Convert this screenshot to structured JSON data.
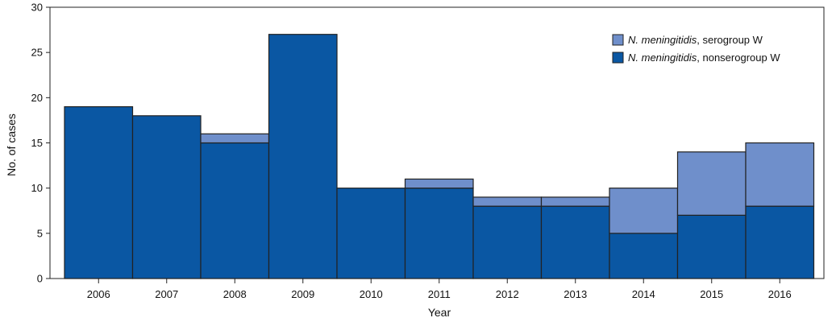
{
  "chart_data": {
    "type": "bar",
    "stacked": true,
    "title": "",
    "xlabel": "Year",
    "ylabel": "No. of cases",
    "ylim": [
      0,
      30
    ],
    "yticks": [
      0,
      5,
      10,
      15,
      20,
      25,
      30
    ],
    "categories": [
      "2006",
      "2007",
      "2008",
      "2009",
      "2010",
      "2011",
      "2012",
      "2013",
      "2014",
      "2015",
      "2016"
    ],
    "series": [
      {
        "name_italic": "N. meningitidis",
        "name_rest": ", nonserogroup W",
        "color": "#0a57a3",
        "values": [
          19,
          18,
          15,
          27,
          10,
          10,
          8,
          8,
          5,
          7,
          8
        ]
      },
      {
        "name_italic": "N. meningitidis",
        "name_rest": ", serogroup W",
        "color": "#6f8fcb",
        "values": [
          0,
          0,
          1,
          0,
          0,
          1,
          1,
          1,
          5,
          7,
          7
        ]
      }
    ],
    "legend_position": "top-right",
    "grid": false
  }
}
